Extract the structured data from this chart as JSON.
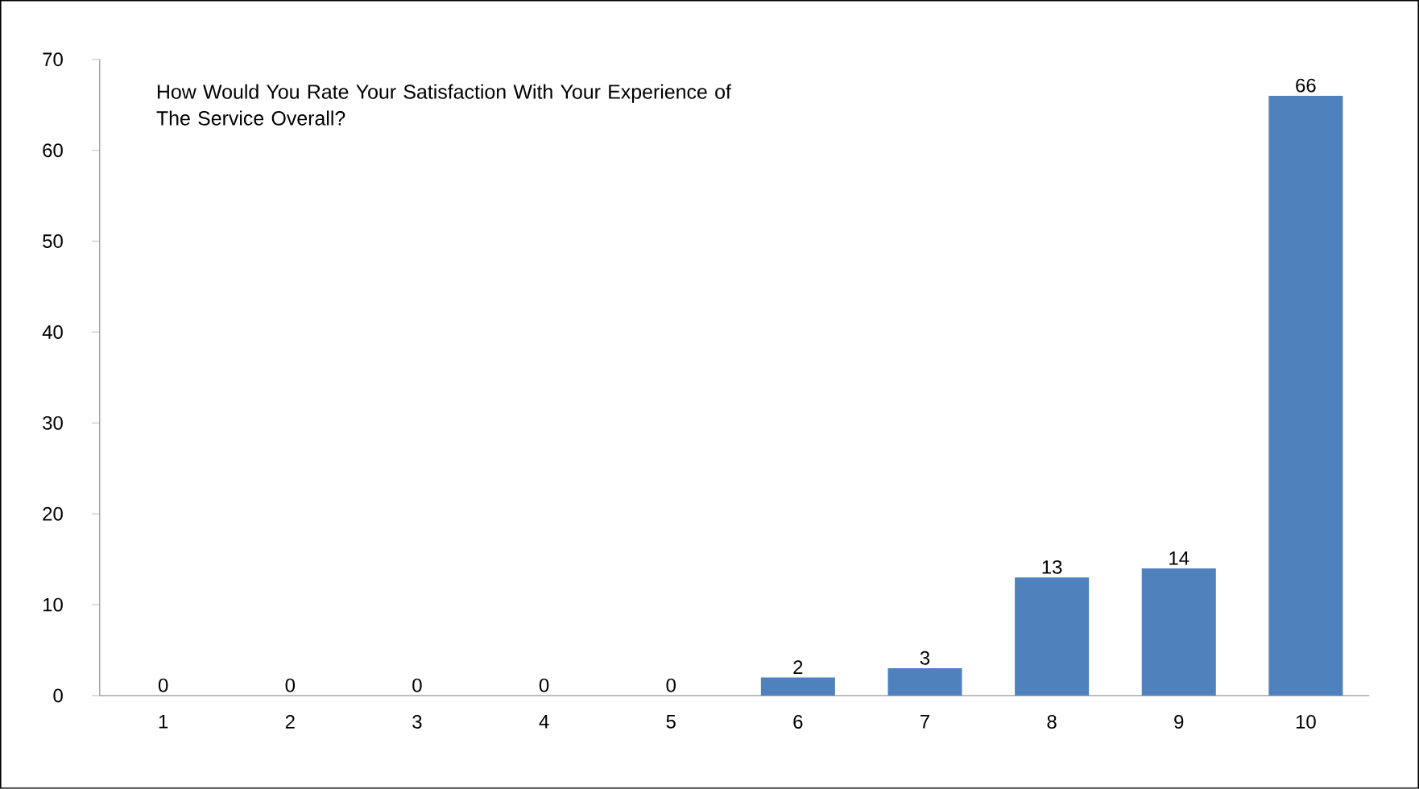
{
  "chart_data": {
    "type": "bar",
    "title": "How Would You Rate Your Satisfaction With Your Experience of The Service Overall?",
    "categories": [
      "1",
      "2",
      "3",
      "4",
      "5",
      "6",
      "7",
      "8",
      "9",
      "10"
    ],
    "values": [
      0,
      0,
      0,
      0,
      0,
      2,
      3,
      13,
      14,
      66
    ],
    "color": "#4f81bd",
    "ylim": [
      0,
      70
    ],
    "yticks": [
      0,
      10,
      20,
      30,
      40,
      50,
      60,
      70
    ],
    "data_labels": true
  }
}
